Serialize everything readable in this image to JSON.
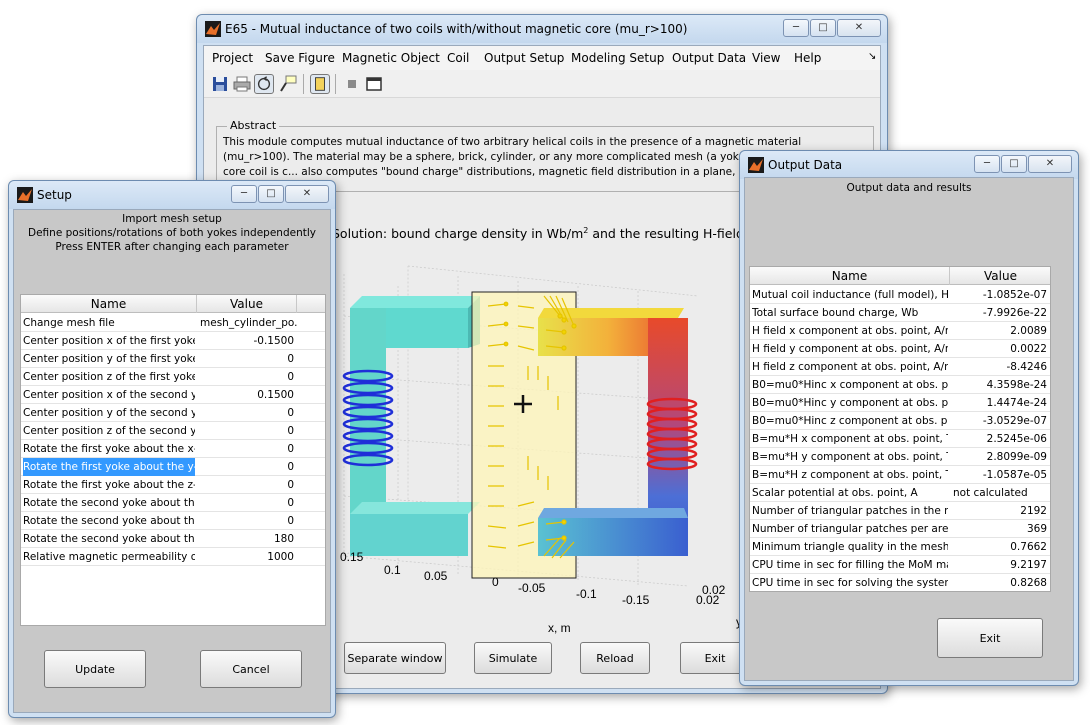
{
  "main_window": {
    "title": "E65 - Mutual inductance of two coils with/without magnetic core (mu_r>100)",
    "menu": [
      "Project",
      "Save Figure",
      "Magnetic Object",
      "Coil",
      "Output Setup",
      "Modeling Setup",
      "Output Data",
      "View",
      "Help"
    ],
    "menu_overflow": "↘",
    "toolbar_icons": [
      "save-icon",
      "print-icon",
      "rotate-3d-icon",
      "data-cursor-icon",
      "layout-icon",
      "stop-icon",
      "window-icon"
    ],
    "abstract_label": "Abstract",
    "abstract_text": "This module computes mutual inductance of two arbitrary helical coils in the presence of a magnetic material (mu_r>100). The material may be a sphere, brick, cylinder, or any more complicated mesh (a yoke). Inductance of the air-core coil is c... also computes \"bound charge\" distributions, magnetic field distribution in a plane, and magnetic field/scalar p...",
    "plot": {
      "title_prefix": "Solution: bound charge density in Wb/m",
      "title_sup": "2",
      "title_suffix": " and the resulting H-field",
      "x_ticks": [
        "0.15",
        "0.1",
        "0.05",
        "0",
        "-0.05",
        "-0.1",
        "-0.15"
      ],
      "x_label": "x, m",
      "y_ticks": [
        "0.02",
        "0.02"
      ],
      "y_label": "y"
    },
    "buttons": {
      "separate_window": "Separate window",
      "simulate": "Simulate",
      "reload": "Reload",
      "exit": "Exit"
    }
  },
  "setup_window": {
    "title": "Setup",
    "header_lines": [
      "Import mesh setup",
      "Define positions/rotations of both yokes independently",
      "Press ENTER after changing each parameter"
    ],
    "columns": [
      "Name",
      "Value"
    ],
    "rows": [
      {
        "name": "Change mesh file",
        "value": "mesh_cylinder_po..."
      },
      {
        "name": "Center position x of the first yoke,m",
        "value": "-0.1500"
      },
      {
        "name": "Center position y of the first yoke,m",
        "value": "0"
      },
      {
        "name": "Center position z of the first yoke,m",
        "value": "0"
      },
      {
        "name": "Center position x of the second y...",
        "value": "0.1500"
      },
      {
        "name": "Center position y of the second y...",
        "value": "0"
      },
      {
        "name": "Center position z of the second y...",
        "value": "0"
      },
      {
        "name": "Rotate the first yoke about the x-a...",
        "value": "0"
      },
      {
        "name": "Rotate the first yoke about the y-a...",
        "value": "0"
      },
      {
        "name": "Rotate the first yoke about the z-a...",
        "value": "0"
      },
      {
        "name": "Rotate the second yoke about the...",
        "value": "0"
      },
      {
        "name": "Rotate the second yoke about the...",
        "value": "0"
      },
      {
        "name": "Rotate the second yoke about the...",
        "value": "180"
      },
      {
        "name": "Relative magnetic permeability of ...",
        "value": "1000"
      }
    ],
    "buttons": {
      "update": "Update",
      "cancel": "Cancel"
    }
  },
  "output_window": {
    "title": "Output Data",
    "header": "Output data and results",
    "columns": [
      "Name",
      "Value"
    ],
    "rows": [
      {
        "name": "Mutual coil inductance (full model), H",
        "value": "-1.0852e-07"
      },
      {
        "name": "Total surface bound charge, Wb",
        "value": "-7.9926e-22"
      },
      {
        "name": "H field x component at obs. point, A/m",
        "value": "2.0089"
      },
      {
        "name": "H field y component at obs. point, A/m",
        "value": "0.0022"
      },
      {
        "name": "H field z component at obs. point, A/m",
        "value": "-8.4246"
      },
      {
        "name": "B0=mu0*Hinc x component at obs. poin...",
        "value": "4.3598e-24"
      },
      {
        "name": "B0=mu0*Hinc y component at obs. poin...",
        "value": "1.4474e-24"
      },
      {
        "name": "B0=mu0*Hinc z component at obs. poin...",
        "value": "-3.0529e-07"
      },
      {
        "name": "B=mu*H x component at obs. point, T",
        "value": "2.5245e-06"
      },
      {
        "name": "B=mu*H y component at obs. point, T",
        "value": "2.8099e-09"
      },
      {
        "name": "B=mu*H z component at obs. point, T",
        "value": "-1.0587e-05"
      },
      {
        "name": "Scalar potential at obs. point, A",
        "value": "not calculated"
      },
      {
        "name": "Number of triangular patches in the me...",
        "value": "2192"
      },
      {
        "name": "Number of triangular patches per area ...",
        "value": "369"
      },
      {
        "name": "Minimum triangle quality in the mesh",
        "value": "0.7662"
      },
      {
        "name": "CPU time in sec for filling the MoM matrix",
        "value": "9.2197"
      },
      {
        "name": "CPU time in sec for solving the system ...",
        "value": "0.8268"
      }
    ],
    "buttons": {
      "exit": "Exit"
    }
  },
  "window_controls": {
    "minimize": "─",
    "maximize": "□",
    "close": "✕"
  }
}
